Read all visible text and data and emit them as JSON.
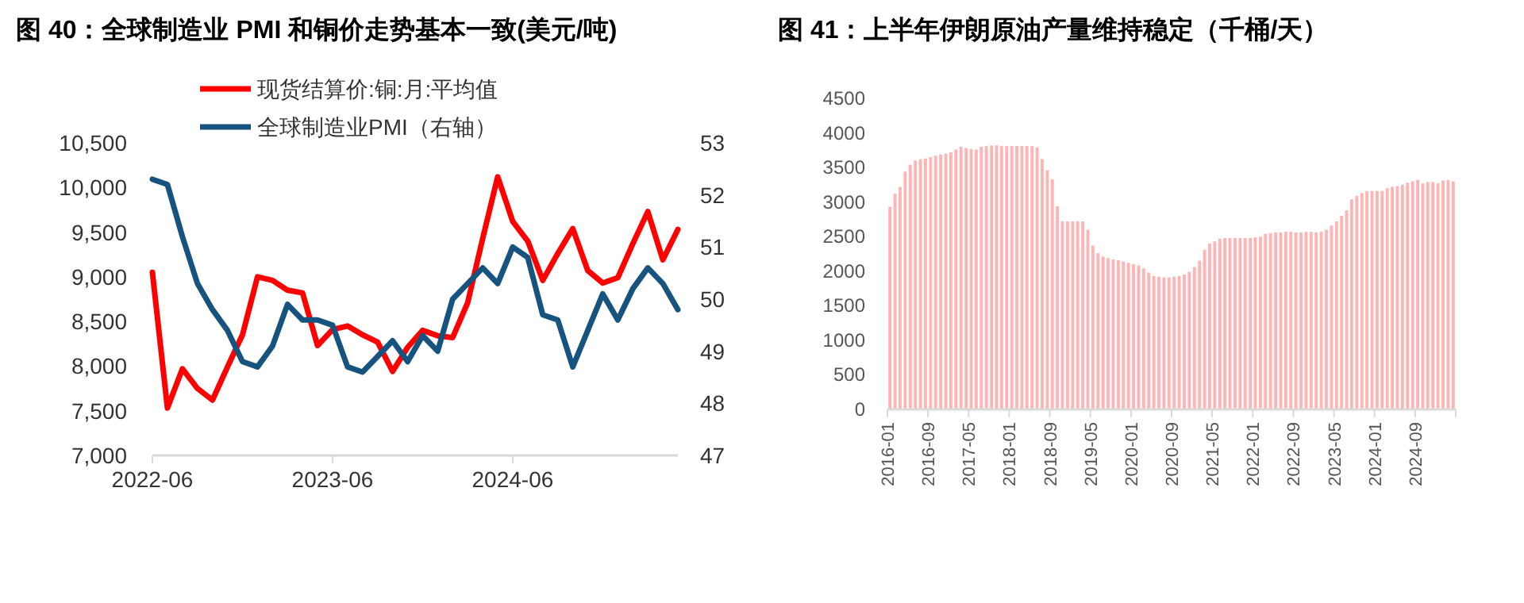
{
  "chart_data": [
    {
      "type": "line",
      "title": "图 40：全球制造业 PMI 和铜价走势基本一致(美元/吨)",
      "legend": "top left",
      "x": [
        "2022-06",
        "2022-07",
        "2022-08",
        "2022-09",
        "2022-10",
        "2022-11",
        "2022-12",
        "2023-01",
        "2023-02",
        "2023-03",
        "2023-04",
        "2023-05",
        "2023-06",
        "2023-07",
        "2023-08",
        "2023-09",
        "2023-10",
        "2023-11",
        "2023-12",
        "2024-01",
        "2024-02",
        "2024-03",
        "2024-04",
        "2024-05",
        "2024-06",
        "2024-07",
        "2024-08",
        "2024-09",
        "2024-10",
        "2024-11",
        "2024-12",
        "2025-01",
        "2025-02",
        "2025-03",
        "2025-04",
        "2025-05"
      ],
      "xlim": [
        "2022-06",
        "2025-05"
      ],
      "xticks": [
        "2022-06",
        "2023-06",
        "2024-06"
      ],
      "ylim": [
        7000,
        10500
      ],
      "yticks": [
        {
          "value": 7000,
          "label": "7,000"
        },
        {
          "value": 7500,
          "label": "7,500"
        },
        {
          "value": 8000,
          "label": "8,000"
        },
        {
          "value": 8500,
          "label": "8,500"
        },
        {
          "value": 9000,
          "label": "9,000"
        },
        {
          "value": 9500,
          "label": "9,500"
        },
        {
          "value": 10000,
          "label": "10,000"
        },
        {
          "value": 10500,
          "label": "10,500"
        }
      ],
      "y2lim": [
        47,
        53
      ],
      "y2ticks": [
        47,
        48,
        49,
        50,
        51,
        52,
        53
      ],
      "series": [
        {
          "name": "现货结算价:铜:月:平均值",
          "color": "#ff0000",
          "values": [
            9050,
            7530,
            7970,
            7750,
            7620,
            7990,
            8350,
            9000,
            8960,
            8850,
            8820,
            8230,
            8410,
            8450,
            8350,
            8270,
            7940,
            8210,
            8400,
            8340,
            8320,
            8710,
            9430,
            10120,
            9620,
            9400,
            8960,
            9260,
            9540,
            9070,
            8930,
            8990,
            9370,
            9730,
            9190,
            9530
          ]
        },
        {
          "name": "全球制造业PMI（右轴）",
          "color": "#16537e",
          "axis": "y2",
          "values": [
            52.3,
            52.2,
            51.2,
            50.3,
            49.8,
            49.4,
            48.8,
            48.7,
            49.1,
            49.9,
            49.6,
            49.6,
            49.5,
            48.7,
            48.6,
            48.9,
            49.2,
            48.8,
            49.3,
            49.0,
            50.0,
            50.3,
            50.6,
            50.3,
            51.0,
            50.8,
            49.7,
            49.6,
            48.7,
            49.4,
            50.1,
            49.6,
            50.2,
            50.6,
            50.3,
            49.8
          ]
        }
      ]
    },
    {
      "type": "bar",
      "title": "图 41：上半年伊朗原油产量维持稳定（千桶/天）",
      "color": "#ffb3b3",
      "categories": [
        "2016-01",
        null,
        null,
        null,
        null,
        null,
        null,
        null,
        "2016-09",
        null,
        null,
        null,
        null,
        null,
        null,
        null,
        "2017-05",
        null,
        null,
        null,
        null,
        null,
        null,
        null,
        "2018-01",
        null,
        null,
        null,
        null,
        null,
        null,
        null,
        "2018-09",
        null,
        null,
        null,
        null,
        null,
        null,
        null,
        "2019-05",
        null,
        null,
        null,
        null,
        null,
        null,
        null,
        "2020-01",
        null,
        null,
        null,
        null,
        null,
        null,
        null,
        "2020-09",
        null,
        null,
        null,
        null,
        null,
        null,
        null,
        "2021-05",
        null,
        null,
        null,
        null,
        null,
        null,
        null,
        "2022-01",
        null,
        null,
        null,
        null,
        null,
        null,
        null,
        "2022-09",
        null,
        null,
        null,
        null,
        null,
        null,
        null,
        "2023-05",
        null,
        null,
        null,
        null,
        null,
        null,
        null,
        "2024-01",
        null,
        null,
        null,
        null,
        null,
        null,
        null,
        "2024-09",
        null,
        null,
        null,
        null,
        null,
        null,
        null
      ],
      "values": [
        2930,
        3120,
        3220,
        3440,
        3540,
        3600,
        3620,
        3630,
        3650,
        3670,
        3690,
        3700,
        3720,
        3760,
        3800,
        3780,
        3770,
        3760,
        3800,
        3810,
        3820,
        3820,
        3810,
        3810,
        3810,
        3810,
        3810,
        3810,
        3810,
        3790,
        3620,
        3460,
        3330,
        2940,
        2720,
        2720,
        2720,
        2720,
        2720,
        2600,
        2370,
        2260,
        2210,
        2190,
        2170,
        2160,
        2140,
        2120,
        2100,
        2080,
        2040,
        1980,
        1930,
        1920,
        1910,
        1910,
        1920,
        1930,
        1950,
        1990,
        2060,
        2150,
        2310,
        2400,
        2430,
        2470,
        2480,
        2480,
        2480,
        2480,
        2480,
        2480,
        2490,
        2500,
        2540,
        2550,
        2560,
        2560,
        2570,
        2570,
        2560,
        2560,
        2570,
        2570,
        2560,
        2570,
        2600,
        2660,
        2720,
        2800,
        2880,
        3040,
        3090,
        3130,
        3160,
        3160,
        3160,
        3160,
        3200,
        3220,
        3230,
        3250,
        3280,
        3300,
        3320,
        3270,
        3290,
        3290,
        3270,
        3310,
        3320,
        3300
      ],
      "ylim": [
        0,
        4500
      ],
      "yticks": [
        0,
        500,
        1000,
        1500,
        2000,
        2500,
        3000,
        3500,
        4000,
        4500
      ]
    }
  ]
}
